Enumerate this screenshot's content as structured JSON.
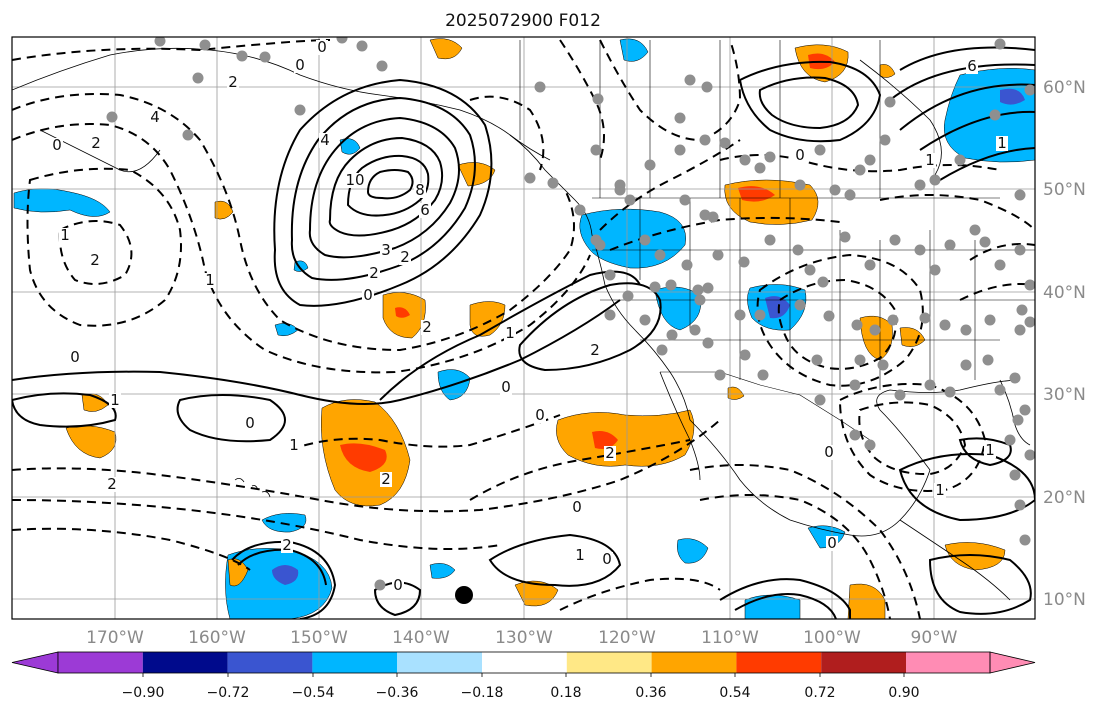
{
  "title": "2025072900 F012",
  "lon_labels": [
    "170°W",
    "160°W",
    "150°W",
    "140°W",
    "130°W",
    "120°W",
    "110°W",
    "100°W",
    "90°W"
  ],
  "lat_labels": [
    "60°N",
    "50°N",
    "40°N",
    "30°N",
    "20°N",
    "10°N"
  ],
  "colorbar": {
    "ticks": [
      "−0.90",
      "−0.72",
      "−0.54",
      "−0.36",
      "−0.18",
      "0.18",
      "0.36",
      "0.54",
      "0.72",
      "0.90"
    ],
    "colors": [
      "#9c3ad6",
      "#000a8c",
      "#3a55d0",
      "#00b6ff",
      "#a9e1ff",
      "#ffffff",
      "#ffe886",
      "#ffa500",
      "#ff3b00",
      "#b01e1e",
      "#ff8cb4"
    ]
  },
  "contour_labels": [
    "0",
    "0",
    "2",
    "4",
    "0",
    "2",
    "1",
    "2",
    "10",
    "8",
    "6",
    "4",
    "3",
    "2",
    "2",
    "0",
    "1",
    "2",
    "0",
    "1",
    "0",
    "1",
    "2",
    "0",
    "2",
    "0",
    "2",
    "1",
    "6",
    "0",
    "1",
    "1",
    "2",
    "0",
    "0",
    "1",
    "2",
    "0",
    "0",
    "1",
    "1",
    "0"
  ]
}
